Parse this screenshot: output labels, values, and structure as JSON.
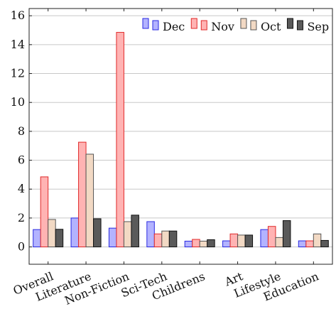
{
  "chart_data": {
    "type": "bar",
    "categories": [
      "Overall",
      "Literature",
      "Non-Fiction",
      "Sci-Tech",
      "Childrens",
      "Art",
      "Lifestyle",
      "Education"
    ],
    "series": [
      {
        "name": "Dec",
        "values": [
          1.2,
          2.0,
          1.3,
          1.75,
          0.4,
          0.42,
          1.2,
          0.42
        ],
        "fill": "#b3b3ff",
        "stroke": "#2a2ae0"
      },
      {
        "name": "Nov",
        "values": [
          4.85,
          7.25,
          14.85,
          0.9,
          0.52,
          0.9,
          1.42,
          0.42
        ],
        "fill": "#ffb3b3",
        "stroke": "#e02a2a"
      },
      {
        "name": "Oct",
        "values": [
          1.9,
          6.42,
          1.75,
          1.1,
          0.4,
          0.82,
          0.65,
          0.9
        ],
        "fill": "#f2d9c4",
        "stroke": "#555555"
      },
      {
        "name": "Sep",
        "values": [
          1.22,
          1.95,
          2.2,
          1.1,
          0.5,
          0.82,
          1.82,
          0.45
        ],
        "fill": "#5a5a5a",
        "stroke": "#111111"
      }
    ],
    "ylim": [
      -1.2,
      16.5
    ],
    "yticks": [
      "0",
      "2",
      "4",
      "6",
      "8",
      "10",
      "12",
      "14",
      "16"
    ],
    "grid": "horizontal",
    "legend": "top-right",
    "xlabel": "",
    "ylabel": "",
    "title": ""
  }
}
